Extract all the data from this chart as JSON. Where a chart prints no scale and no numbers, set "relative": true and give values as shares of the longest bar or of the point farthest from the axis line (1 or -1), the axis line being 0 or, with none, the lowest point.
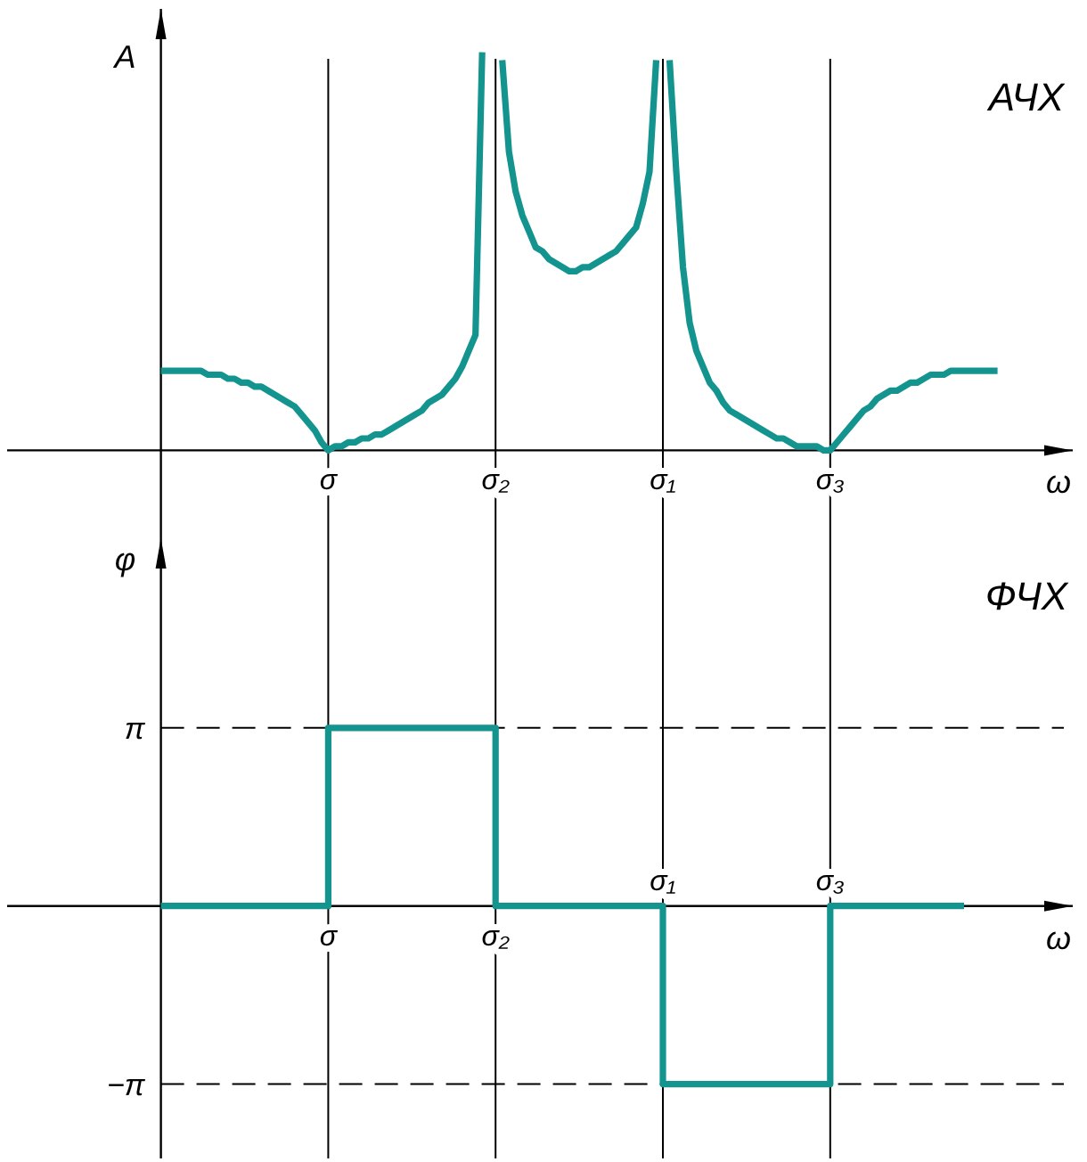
{
  "chart_data": [
    {
      "type": "line",
      "title": "АЧХ",
      "xlabel": "ω",
      "ylabel": "A",
      "relative": true,
      "grid": "x",
      "categories": [
        null,
        null,
        null,
        null,
        null,
        null,
        null,
        null,
        null,
        null,
        null,
        null,
        null,
        null,
        null,
        null,
        null,
        null,
        null,
        null,
        null,
        null,
        null,
        null,
        null,
        "σ",
        null,
        null,
        null,
        null,
        null,
        null,
        null,
        null,
        null,
        null,
        null,
        null,
        null,
        null,
        null,
        null,
        null,
        null,
        null,
        null,
        null,
        null,
        null,
        null,
        "σ₂",
        null,
        null,
        null,
        null,
        null,
        null,
        null,
        null,
        null,
        null,
        null,
        null,
        null,
        null,
        null,
        null,
        null,
        null,
        null,
        null,
        null,
        null,
        null,
        null,
        "σ₁",
        null,
        null,
        null,
        null,
        null,
        null,
        null,
        null,
        null,
        null,
        null,
        null,
        null,
        null,
        null,
        null,
        null,
        null,
        null,
        null,
        null,
        null,
        null,
        null,
        "σ₃",
        null,
        null,
        null,
        null,
        null,
        null,
        null,
        null,
        null,
        null,
        null,
        null,
        null,
        null,
        null,
        null,
        null,
        null,
        null,
        null,
        null,
        null,
        null,
        null,
        null
      ],
      "series": [
        {
          "color": "#13948e",
          "values": [
            0.2,
            0.2,
            0.2,
            0.2,
            0.2,
            0.2,
            0.2,
            0.19,
            0.19,
            0.19,
            0.18,
            0.18,
            0.17,
            0.17,
            0.16,
            0.16,
            0.15,
            0.14,
            0.13,
            0.12,
            0.11,
            0.09,
            0.07,
            0.05,
            0.02,
            0,
            0.01,
            0.01,
            0.02,
            0.02,
            0.03,
            0.03,
            0.04,
            0.04,
            0.05,
            0.06,
            0.07,
            0.08,
            0.09,
            0.1,
            0.12,
            0.13,
            0.14,
            0.16,
            0.18,
            0.21,
            0.25,
            0.29,
            1,
            null,
            null,
            0.98,
            0.75,
            0.65,
            0.59,
            0.55,
            0.51,
            0.5,
            0.48,
            0.47,
            0.46,
            0.45,
            0.45,
            0.46,
            0.46,
            0.47,
            0.48,
            0.49,
            0.5,
            0.52,
            0.54,
            0.56,
            0.62,
            0.7,
            0.98,
            null,
            0.98,
            0.7,
            0.46,
            0.32,
            0.25,
            0.21,
            0.17,
            0.15,
            0.12,
            0.1,
            0.09,
            0.08,
            0.07,
            0.06,
            0.05,
            0.04,
            0.03,
            0.03,
            0.02,
            0.01,
            0.01,
            0.01,
            0.01,
            0,
            0,
            0.02,
            0.04,
            0.06,
            0.08,
            0.1,
            0.11,
            0.13,
            0.14,
            0.15,
            0.15,
            0.16,
            0.17,
            0.17,
            0.18,
            0.19,
            0.19,
            0.19,
            0.2,
            0.2,
            0.2,
            0.2,
            0.2,
            0.2,
            0.2,
            0.2
          ]
        }
      ]
    },
    {
      "type": "step",
      "title": "ФЧХ",
      "xlabel": "ω",
      "ylabel": "φ",
      "ylim": [
        -4.45,
        6.86
      ],
      "yticks": [
        {
          "value": 3.14,
          "label": "π"
        },
        {
          "value": -3.14,
          "label": "−π"
        }
      ],
      "grid": "x",
      "ref_lines": [
        {
          "axis": "y",
          "value": 3.14,
          "line_style": "dashed",
          "color": "#000000"
        },
        {
          "axis": "y",
          "value": -3.14,
          "line_style": "dashed",
          "color": "#000000"
        }
      ],
      "categories": [
        null,
        null,
        null,
        null,
        null,
        null,
        null,
        null,
        null,
        null,
        null,
        null,
        null,
        null,
        null,
        null,
        null,
        null,
        null,
        null,
        null,
        null,
        null,
        null,
        null,
        "σ",
        null,
        null,
        null,
        null,
        null,
        null,
        null,
        null,
        null,
        null,
        null,
        null,
        null,
        null,
        null,
        null,
        null,
        null,
        null,
        null,
        null,
        null,
        null,
        null,
        "σ₂",
        null,
        null,
        null,
        null,
        null,
        null,
        null,
        null,
        null,
        null,
        null,
        null,
        null,
        null,
        null,
        null,
        null,
        null,
        null,
        null,
        null,
        null,
        null,
        null,
        "σ₁",
        null,
        null,
        null,
        null,
        null,
        null,
        null,
        null,
        null,
        null,
        null,
        null,
        null,
        null,
        null,
        null,
        null,
        null,
        null,
        null,
        null,
        null,
        null,
        null,
        "σ₃",
        null,
        null,
        null,
        null,
        null,
        null,
        null,
        null,
        null,
        null,
        null,
        null,
        null,
        null,
        null,
        null,
        null,
        null,
        null,
        null
      ],
      "series": [
        {
          "color": "#13948e",
          "values": [
            0,
            0,
            0,
            0,
            0,
            0,
            0,
            0,
            0,
            0,
            0,
            0,
            0,
            0,
            0,
            0,
            0,
            0,
            0,
            0,
            0,
            0,
            0,
            0,
            0,
            3.14,
            3.14,
            3.14,
            3.14,
            3.14,
            3.14,
            3.14,
            3.14,
            3.14,
            3.14,
            3.14,
            3.14,
            3.14,
            3.14,
            3.14,
            3.14,
            3.14,
            3.14,
            3.14,
            3.14,
            3.14,
            3.14,
            3.14,
            3.14,
            3.14,
            0,
            0,
            0,
            0,
            0,
            0,
            0,
            0,
            0,
            0,
            0,
            0,
            0,
            0,
            0,
            0,
            0,
            0,
            0,
            0,
            0,
            0,
            0,
            0,
            0,
            -3.14,
            -3.14,
            -3.14,
            -3.14,
            -3.14,
            -3.14,
            -3.14,
            -3.14,
            -3.14,
            -3.14,
            -3.14,
            -3.14,
            -3.14,
            -3.14,
            -3.14,
            -3.14,
            -3.14,
            -3.14,
            -3.14,
            -3.14,
            -3.14,
            -3.14,
            -3.14,
            -3.14,
            -3.14,
            0,
            0,
            0,
            0,
            0,
            0,
            0,
            0,
            0,
            0,
            0,
            0,
            0,
            0,
            0,
            0,
            0,
            0,
            0,
            0,
            0
          ]
        }
      ]
    }
  ]
}
